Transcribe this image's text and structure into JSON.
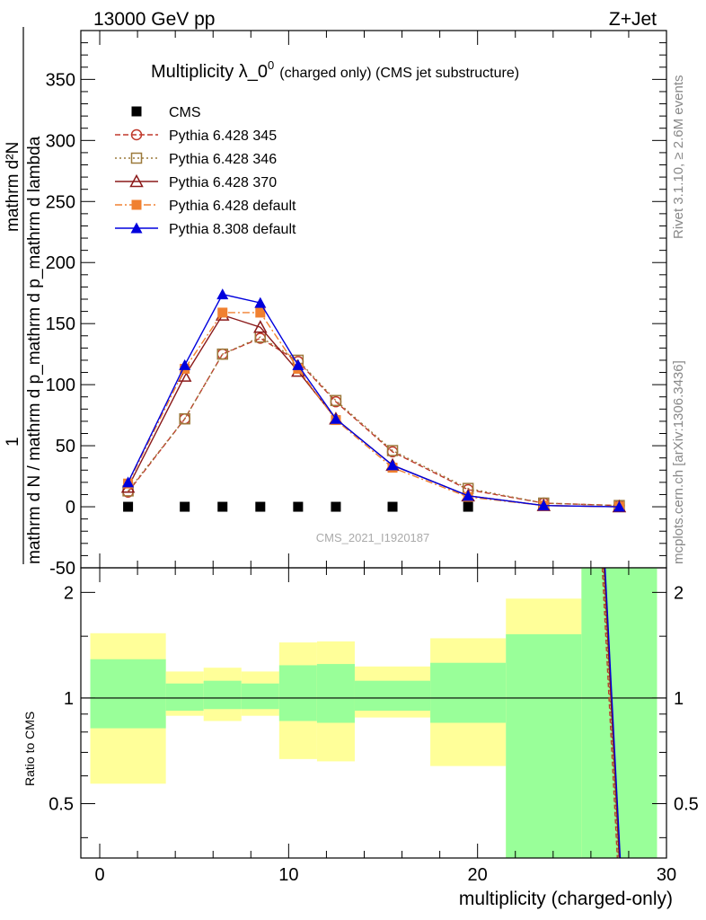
{
  "header": {
    "energy_label": "13000 GeV pp",
    "process_label": "Z+Jet"
  },
  "side_text": {
    "rivet": "Rivet 3.1.10, ≥ 2.6M events",
    "mcplots": "mcplots.cern.ch [arXiv:1306.3436]"
  },
  "chart_data": [
    {
      "type": "scatter",
      "panel": "main",
      "title": "Multiplicity λ_0",
      "title_superscript": "0",
      "title_suffix": "(charged only) (CMS jet substructure)",
      "watermark": "CMS_2021_I1920187",
      "ylabel_numerator": "mathrm d²N",
      "ylabel_denominator": "mathrm d N / mathrm d p_mathrm d p_mathrm d lambda",
      "ylabel_prefix": "1",
      "ylabel_composite": "mathrm d N / mathrm d p_mathrm d p_mathrm d lambda",
      "xlim": [
        -1,
        30
      ],
      "ylim": [
        -50,
        390
      ],
      "yticks": [
        -50,
        0,
        50,
        100,
        150,
        200,
        250,
        300,
        350
      ],
      "legend_position": "top-left",
      "series": [
        {
          "name": "CMS",
          "color": "#000000",
          "marker": "square-filled",
          "line": "none",
          "x": [
            1.5,
            4.5,
            6.5,
            8.5,
            10.5,
            12.5,
            15.5,
            19.5
          ],
          "y": [
            0,
            0,
            0,
            0,
            0,
            0,
            0,
            0
          ]
        },
        {
          "name": "Pythia 6.428 345",
          "color": "#c0392b",
          "marker": "circle-open",
          "line": "dashed",
          "x": [
            1.5,
            4.5,
            6.5,
            8.5,
            10.5,
            12.5,
            15.5,
            19.5,
            23.5,
            27.5
          ],
          "y": [
            12,
            72,
            125,
            138,
            119,
            86,
            45,
            14,
            3,
            1
          ]
        },
        {
          "name": "Pythia 6.428 346",
          "color": "#9c7a3c",
          "marker": "square-open",
          "line": "dotted",
          "x": [
            1.5,
            4.5,
            6.5,
            8.5,
            10.5,
            12.5,
            15.5,
            19.5,
            23.5,
            27.5
          ],
          "y": [
            13,
            72,
            125,
            139,
            120,
            87,
            46,
            15,
            3,
            1
          ]
        },
        {
          "name": "Pythia 6.428 370",
          "color": "#8b1a1a",
          "marker": "triangle-open",
          "line": "solid",
          "x": [
            1.5,
            4.5,
            6.5,
            8.5,
            10.5,
            12.5,
            15.5,
            19.5,
            23.5,
            27.5
          ],
          "y": [
            16,
            107,
            157,
            147,
            111,
            72,
            34,
            9,
            1,
            0
          ]
        },
        {
          "name": "Pythia 6.428 default",
          "color": "#f08030",
          "marker": "square-filled",
          "line": "dashdot",
          "x": [
            1.5,
            4.5,
            6.5,
            8.5,
            10.5,
            12.5,
            15.5,
            19.5,
            23.5,
            27.5
          ],
          "y": [
            19,
            113,
            159,
            159,
            113,
            71,
            32,
            8,
            1,
            0
          ]
        },
        {
          "name": "Pythia 8.308 default",
          "color": "#0000dd",
          "marker": "triangle-filled",
          "line": "solid",
          "x": [
            1.5,
            4.5,
            6.5,
            8.5,
            10.5,
            12.5,
            15.5,
            19.5,
            23.5,
            27.5
          ],
          "y": [
            20,
            116,
            174,
            167,
            116,
            72,
            34,
            9,
            1,
            0
          ]
        }
      ]
    },
    {
      "type": "band",
      "panel": "ratio",
      "ylabel": "Ratio to CMS",
      "xlabel": "multiplicity (charged-only)",
      "xlim": [
        -1,
        30
      ],
      "ylim": [
        0.35,
        2.35
      ],
      "xticks": [
        0,
        10,
        20,
        30
      ],
      "yticks": [
        0.5,
        1,
        2
      ],
      "reference_line": 1,
      "bins": [
        {
          "xlo": -0.5,
          "xhi": 3.5,
          "green": [
            0.82,
            1.29
          ],
          "yellow": [
            0.57,
            1.53
          ]
        },
        {
          "xlo": 3.5,
          "xhi": 5.5,
          "green": [
            0.92,
            1.1
          ],
          "yellow": [
            0.89,
            1.19
          ]
        },
        {
          "xlo": 5.5,
          "xhi": 7.5,
          "green": [
            0.93,
            1.12
          ],
          "yellow": [
            0.86,
            1.22
          ]
        },
        {
          "xlo": 7.5,
          "xhi": 9.5,
          "green": [
            0.93,
            1.1
          ],
          "yellow": [
            0.89,
            1.19
          ]
        },
        {
          "xlo": 9.5,
          "xhi": 11.5,
          "green": [
            0.86,
            1.24
          ],
          "yellow": [
            0.67,
            1.44
          ]
        },
        {
          "xlo": 11.5,
          "xhi": 13.5,
          "green": [
            0.85,
            1.25
          ],
          "yellow": [
            0.66,
            1.45
          ]
        },
        {
          "xlo": 13.5,
          "xhi": 17.5,
          "green": [
            0.92,
            1.12
          ],
          "yellow": [
            0.88,
            1.23
          ]
        },
        {
          "xlo": 17.5,
          "xhi": 21.5,
          "green": [
            0.85,
            1.26
          ],
          "yellow": [
            0.64,
            1.48
          ]
        },
        {
          "xlo": 21.5,
          "xhi": 25.5,
          "green": [
            0.35,
            1.52
          ],
          "yellow": [
            0.35,
            1.92
          ]
        },
        {
          "xlo": 25.5,
          "xhi": 29.5,
          "green": [
            0.35,
            2.35
          ],
          "yellow": [
            0.35,
            2.35
          ]
        }
      ],
      "ratio_lines": [
        {
          "name": "Pythia 6.428 345",
          "color": "#c0392b",
          "dash": "5,3",
          "x": [
            26.6,
            27.4
          ],
          "y": [
            2.35,
            0.35
          ]
        },
        {
          "name": "Pythia 6.428 346",
          "color": "#9c7a3c",
          "dash": "2,2",
          "x": [
            26.65,
            27.45
          ],
          "y": [
            2.35,
            0.35
          ]
        },
        {
          "name": "Pythia 6.428 370",
          "color": "#8b1a1a",
          "dash": "",
          "x": [
            26.7,
            27.5
          ],
          "y": [
            2.35,
            0.35
          ]
        },
        {
          "name": "Pythia 8.308 default",
          "color": "#0000dd",
          "dash": "",
          "x": [
            26.75,
            27.55
          ],
          "y": [
            2.35,
            0.35
          ]
        }
      ]
    }
  ]
}
